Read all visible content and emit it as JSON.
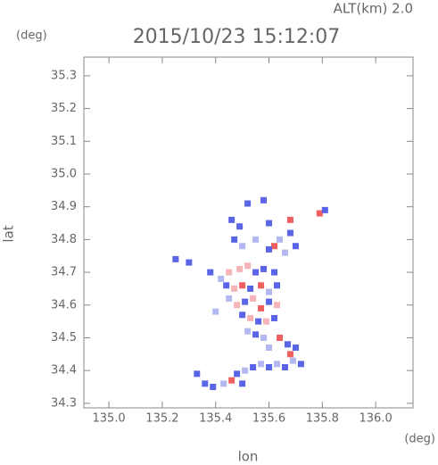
{
  "chart_data": {
    "type": "scatter",
    "title": "2015/10/23 15:12:07",
    "subtitle": "ALT(km) 2.0",
    "y_unit": "(deg)",
    "x_unit": "(deg)",
    "x_label": "lon",
    "y_label": "lat",
    "xlim": [
      134.906,
      136.14
    ],
    "ylim": [
      34.286,
      35.357
    ],
    "xticks": [
      {
        "value": 135,
        "label": "135.0"
      },
      135.2,
      135.4,
      135.6,
      135.8,
      {
        "value": 136,
        "label": "136.0"
      }
    ],
    "yticks": [
      34.3,
      34.4,
      34.5,
      34.6,
      34.7,
      34.8,
      34.9,
      {
        "value": 35,
        "label": "35.0"
      },
      35.1,
      35.2,
      35.3
    ],
    "series": [
      {
        "x": [
          135.46,
          135.49,
          135.47,
          135.5,
          135.52,
          135.58,
          135.6,
          135.62,
          135.6,
          135.64,
          135.68,
          135.68,
          135.7,
          135.66,
          135.79,
          135.81,
          135.55,
          135.38,
          135.42,
          135.45,
          135.49,
          135.52,
          135.55,
          135.58,
          135.62,
          135.44,
          135.47,
          135.5,
          135.53,
          135.57,
          135.6,
          135.63,
          135.45,
          135.48,
          135.51,
          135.54,
          135.57,
          135.6,
          135.63,
          135.4,
          135.5,
          135.53,
          135.56,
          135.59,
          135.62,
          135.52,
          135.55,
          135.58,
          135.64,
          135.67,
          135.7,
          135.68,
          135.6,
          135.33,
          135.36,
          135.39,
          135.43,
          135.46,
          135.48,
          135.51,
          135.54,
          135.57,
          135.6,
          135.63,
          135.66,
          135.69,
          135.72,
          135.5,
          135.25,
          135.3
        ],
        "y": [
          34.86,
          34.84,
          34.8,
          34.78,
          34.91,
          34.92,
          34.85,
          34.78,
          34.77,
          34.8,
          34.86,
          34.82,
          34.78,
          34.76,
          34.88,
          34.89,
          34.8,
          34.7,
          34.68,
          34.7,
          34.71,
          34.72,
          34.7,
          34.71,
          34.7,
          34.66,
          34.65,
          34.66,
          34.65,
          34.66,
          34.64,
          34.66,
          34.62,
          34.6,
          34.61,
          34.62,
          34.59,
          34.61,
          34.6,
          34.58,
          34.57,
          34.56,
          34.55,
          34.55,
          34.56,
          34.52,
          34.51,
          34.5,
          34.5,
          34.48,
          34.47,
          34.45,
          34.47,
          34.39,
          34.36,
          34.35,
          34.36,
          34.37,
          34.39,
          34.4,
          34.41,
          34.42,
          34.41,
          34.42,
          34.41,
          34.43,
          34.42,
          34.36,
          34.74,
          34.73
        ],
        "colors": [
          "#5a64e6",
          "#5a64e6",
          "#5a64e6",
          "#b4b8f0",
          "#5a64e6",
          "#5a64e6",
          "#5a64e6",
          "#f06060",
          "#5a64e6",
          "#b4b8f0",
          "#f06060",
          "#5a64e6",
          "#5a64e6",
          "#b4b8f0",
          "#f06060",
          "#5a64e6",
          "#b4b8f0",
          "#5a64e6",
          "#b4b8f0",
          "#f4b4b8",
          "#f4b4b8",
          "#f4b4b8",
          "#5a64e6",
          "#5a64e6",
          "#5a64e6",
          "#5a64e6",
          "#f4b4b8",
          "#f06060",
          "#5a64e6",
          "#f06060",
          "#b4b8f0",
          "#5a64e6",
          "#b4b8f0",
          "#f4b4b8",
          "#5a64e6",
          "#f4b4b8",
          "#f06060",
          "#5a64e6",
          "#f4b4b8",
          "#b4b8f0",
          "#5a64e6",
          "#f4b4b8",
          "#5a64e6",
          "#f4b4b8",
          "#5a64e6",
          "#b4b8f0",
          "#5a64e6",
          "#b4b8f0",
          "#f06060",
          "#5a64e6",
          "#5a64e6",
          "#f06060",
          "#b4b8f0",
          "#5a64e6",
          "#5a64e6",
          "#5a64e6",
          "#b4b8f0",
          "#f06060",
          "#5a64e6",
          "#b4b8f0",
          "#5a64e6",
          "#b4b8f0",
          "#5a64e6",
          "#b4b8f0",
          "#5a64e6",
          "#b4b8f0",
          "#5a64e6",
          "#5a64e6",
          "#5a64e6",
          "#5a64e6"
        ]
      }
    ]
  }
}
